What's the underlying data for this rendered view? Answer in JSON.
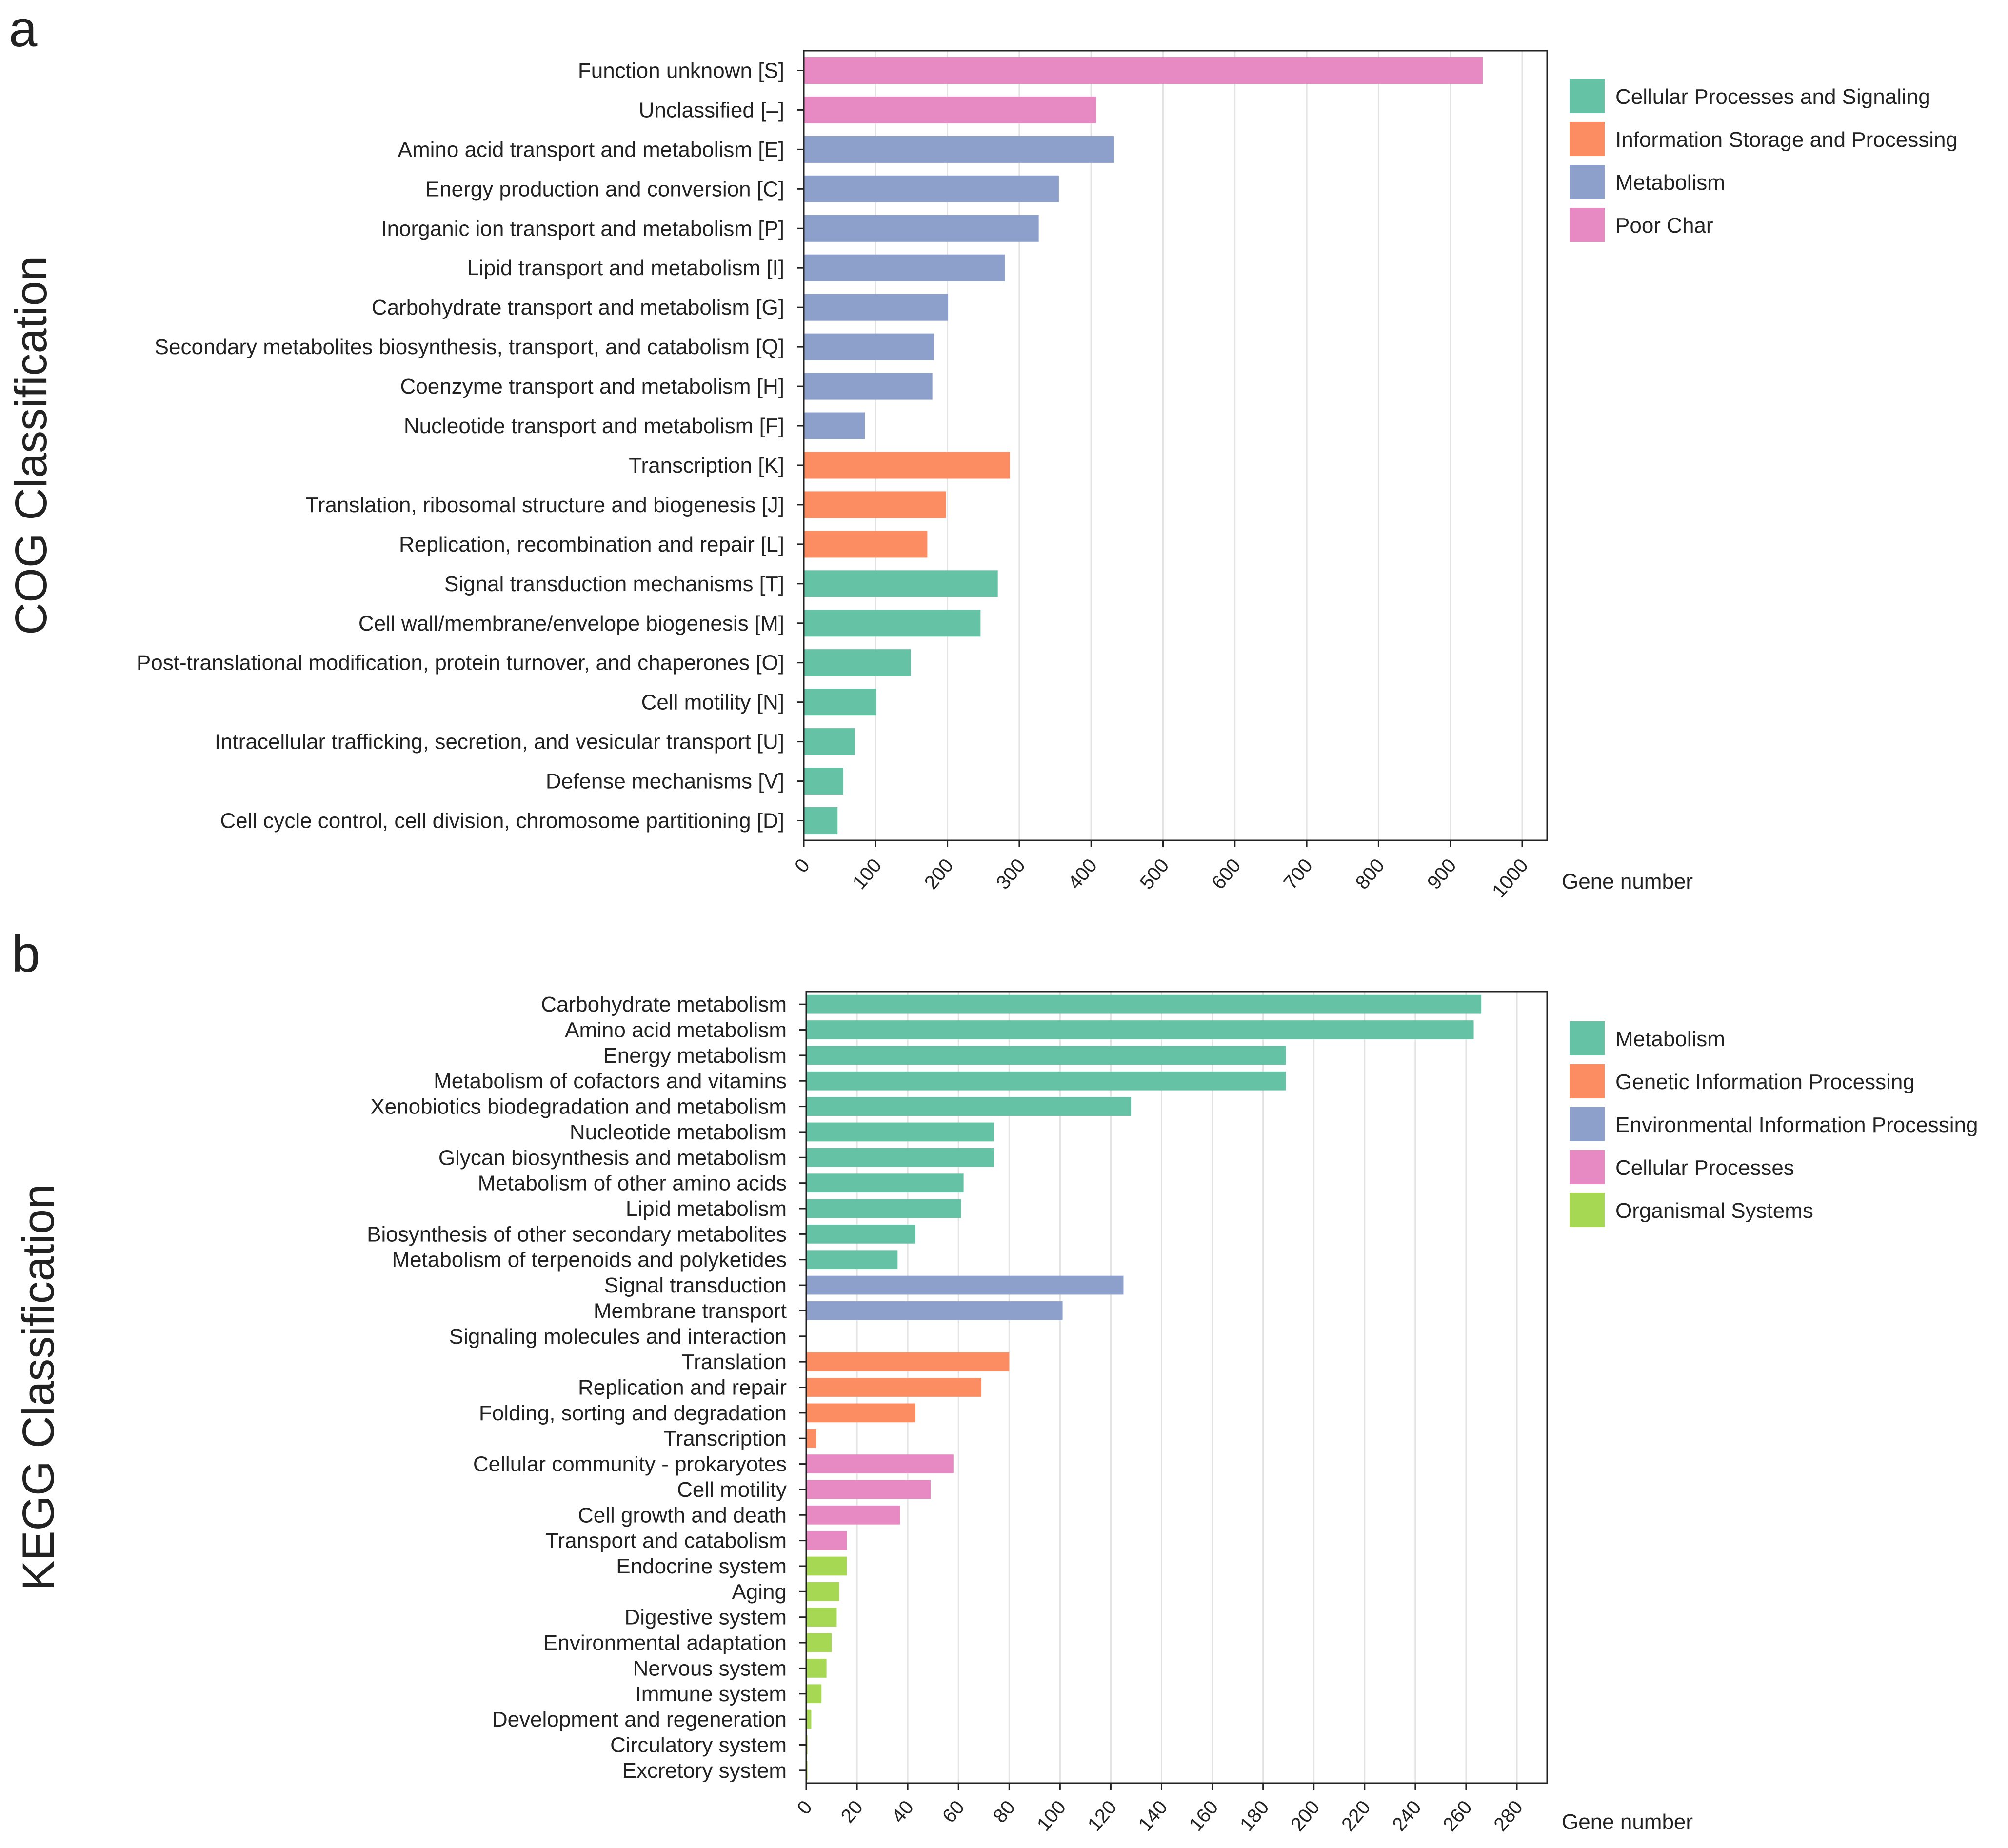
{
  "chart_data": [
    {
      "type": "bar",
      "orientation": "horizontal",
      "panel_label": "a",
      "ylabel": "COG Classification",
      "xlabel": "Gene number",
      "xlim": [
        0,
        1000
      ],
      "xticks": [
        0,
        100,
        200,
        300,
        400,
        500,
        600,
        700,
        800,
        900,
        1000
      ],
      "grid": true,
      "legend_position": "right",
      "legend": [
        {
          "name": "Cellular Processes and Signaling",
          "color": "#66c2a5"
        },
        {
          "name": "Information Storage and Processing",
          "color": "#fc8d62"
        },
        {
          "name": "Metabolism",
          "color": "#8da0cb"
        },
        {
          "name": "Poor Char",
          "color": "#e78ac3"
        }
      ],
      "bars": [
        {
          "label": "Function unknown [S]",
          "value": 945,
          "group": 3
        },
        {
          "label": "Unclassified [–]",
          "value": 407,
          "group": 3
        },
        {
          "label": "Amino acid transport and metabolism [E]",
          "value": 432,
          "group": 2
        },
        {
          "label": "Energy production and conversion [C]",
          "value": 355,
          "group": 2
        },
        {
          "label": "Inorganic ion transport and metabolism [P]",
          "value": 327,
          "group": 2
        },
        {
          "label": "Lipid transport and metabolism [I]",
          "value": 280,
          "group": 2
        },
        {
          "label": "Carbohydrate transport and metabolism [G]",
          "value": 201,
          "group": 2
        },
        {
          "label": "Secondary metabolites biosynthesis, transport, and catabolism [Q]",
          "value": 181,
          "group": 2
        },
        {
          "label": "Coenzyme transport and metabolism [H]",
          "value": 179,
          "group": 2
        },
        {
          "label": "Nucleotide transport and metabolism [F]",
          "value": 85,
          "group": 2
        },
        {
          "label": "Transcription [K]",
          "value": 287,
          "group": 1
        },
        {
          "label": "Translation, ribosomal structure and biogenesis [J]",
          "value": 198,
          "group": 1
        },
        {
          "label": "Replication, recombination and repair [L]",
          "value": 172,
          "group": 1
        },
        {
          "label": "Signal transduction mechanisms [T]",
          "value": 270,
          "group": 0
        },
        {
          "label": "Cell wall/membrane/envelope biogenesis [M]",
          "value": 246,
          "group": 0
        },
        {
          "label": "Post-translational modification, protein turnover, and chaperones [O]",
          "value": 149,
          "group": 0
        },
        {
          "label": "Cell motility [N]",
          "value": 101,
          "group": 0
        },
        {
          "label": "Intracellular trafficking, secretion, and vesicular transport [U]",
          "value": 71,
          "group": 0
        },
        {
          "label": "Defense mechanisms [V]",
          "value": 55,
          "group": 0
        },
        {
          "label": "Cell cycle control, cell division, chromosome partitioning [D]",
          "value": 47,
          "group": 0
        }
      ]
    },
    {
      "type": "bar",
      "orientation": "horizontal",
      "panel_label": "b",
      "ylabel": "KEGG Classification",
      "xlabel": "Gene number",
      "xlim": [
        0,
        292
      ],
      "xticks": [
        0,
        20,
        40,
        60,
        80,
        100,
        120,
        140,
        160,
        180,
        200,
        220,
        240,
        260,
        280
      ],
      "grid": true,
      "legend_position": "right",
      "legend": [
        {
          "name": "Metabolism",
          "color": "#66c2a5"
        },
        {
          "name": "Genetic Information Processing",
          "color": "#fc8d62"
        },
        {
          "name": "Environmental Information Processing",
          "color": "#8da0cb"
        },
        {
          "name": "Cellular Processes",
          "color": "#e78ac3"
        },
        {
          "name": "Organismal Systems",
          "color": "#a6d854"
        }
      ],
      "bars": [
        {
          "label": "Carbohydrate metabolism",
          "value": 266,
          "group": 0
        },
        {
          "label": "Amino acid metabolism",
          "value": 263,
          "group": 0
        },
        {
          "label": "Energy metabolism",
          "value": 189,
          "group": 0
        },
        {
          "label": "Metabolism of cofactors and vitamins",
          "value": 189,
          "group": 0
        },
        {
          "label": "Xenobiotics biodegradation and metabolism",
          "value": 128,
          "group": 0
        },
        {
          "label": "Nucleotide metabolism",
          "value": 74,
          "group": 0
        },
        {
          "label": "Glycan biosynthesis and metabolism",
          "value": 74,
          "group": 0
        },
        {
          "label": "Metabolism of other amino acids",
          "value": 62,
          "group": 0
        },
        {
          "label": "Lipid metabolism",
          "value": 61,
          "group": 0
        },
        {
          "label": "Biosynthesis of other secondary metabolites",
          "value": 43,
          "group": 0
        },
        {
          "label": "Metabolism of terpenoids and polyketides",
          "value": 36,
          "group": 0
        },
        {
          "label": "Signal transduction",
          "value": 125,
          "group": 2
        },
        {
          "label": "Membrane transport",
          "value": 101,
          "group": 2
        },
        {
          "label": "Signaling molecules and interaction",
          "value": 0,
          "group": 2
        },
        {
          "label": "Translation",
          "value": 80,
          "group": 1
        },
        {
          "label": "Replication and repair",
          "value": 69,
          "group": 1
        },
        {
          "label": "Folding, sorting and degradation",
          "value": 43,
          "group": 1
        },
        {
          "label": "Transcription",
          "value": 4,
          "group": 1
        },
        {
          "label": "Cellular community - prokaryotes",
          "value": 58,
          "group": 3
        },
        {
          "label": "Cell motility",
          "value": 49,
          "group": 3
        },
        {
          "label": "Cell growth and death",
          "value": 37,
          "group": 3
        },
        {
          "label": "Transport and catabolism",
          "value": 16,
          "group": 3
        },
        {
          "label": "Endocrine system",
          "value": 16,
          "group": 4
        },
        {
          "label": "Aging",
          "value": 13,
          "group": 4
        },
        {
          "label": "Digestive system",
          "value": 12,
          "group": 4
        },
        {
          "label": "Environmental adaptation",
          "value": 10,
          "group": 4
        },
        {
          "label": "Nervous system",
          "value": 8,
          "group": 4
        },
        {
          "label": "Immune system",
          "value": 6,
          "group": 4
        },
        {
          "label": "Development and regeneration",
          "value": 2,
          "group": 4
        },
        {
          "label": "Circulatory system",
          "value": 0.5,
          "group": 4
        },
        {
          "label": "Excretory system",
          "value": 0.5,
          "group": 4
        }
      ]
    }
  ]
}
